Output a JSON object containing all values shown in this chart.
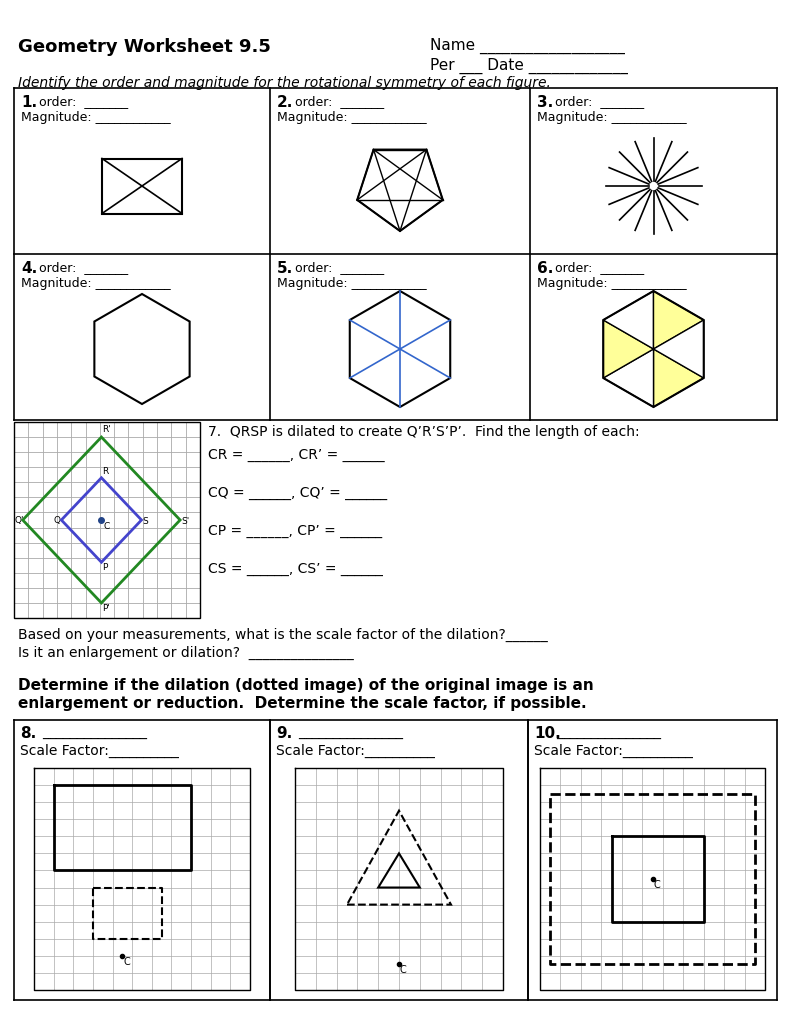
{
  "title": "Geometry Worksheet 9.5",
  "name_line": "Name ___________________",
  "per_date_line": "Per ___ Date _____________",
  "instruction1": "Identify the order and magnitude for the rotational symmetry of each figure.",
  "instruction2": "Determine if the dilation (dotted image) of the original image is an\nenlargement or reduction.  Determine the scale factor, if possible.",
  "q7_text": "7.  QRSP is dilated to create Q’R’S’P’.  Find the length of each:",
  "q7_lines": [
    "CR = ______, CR’ = ______",
    "CQ = ______, CQ’ = ______",
    "CP = ______, CP’ = ______",
    "CS = ______, CS’ = ______"
  ],
  "scale_q": "Based on your measurements, what is the scale factor of the dilation?______",
  "enlarge_q": "Is it an enlargement or dilation?  _______________",
  "bg_color": "#ffffff",
  "grid_color": "#cccccc",
  "line_color": "#000000",
  "blue_color": "#4444cc",
  "green_color": "#228822",
  "yellow_color": "#ffff99"
}
